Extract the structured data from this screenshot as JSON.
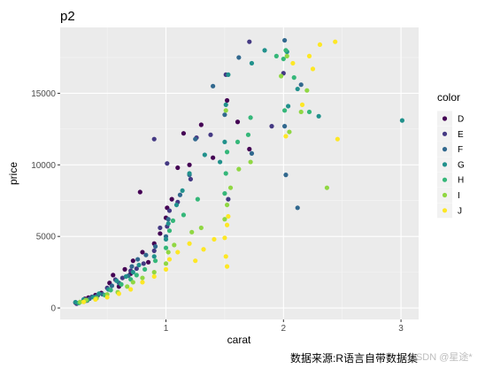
{
  "chart_data": {
    "type": "scatter",
    "title": "p2",
    "xlabel": "carat",
    "ylabel": "price",
    "xlim": [
      0.1,
      3.15
    ],
    "ylim": [
      -800,
      19600
    ],
    "x_ticks": [
      1,
      2,
      3
    ],
    "y_ticks": [
      0,
      5000,
      10000,
      15000
    ],
    "grid": true,
    "legend": {
      "title": "color",
      "placement": "right"
    },
    "series": [
      {
        "name": "D",
        "color": "#440154",
        "points": [
          [
            0.23,
            380
          ],
          [
            0.3,
            560
          ],
          [
            0.31,
            640
          ],
          [
            0.34,
            720
          ],
          [
            0.4,
            900
          ],
          [
            0.45,
            1050
          ],
          [
            0.52,
            1750
          ],
          [
            0.55,
            2300
          ],
          [
            0.6,
            1500
          ],
          [
            0.65,
            2700
          ],
          [
            0.7,
            2400
          ],
          [
            0.72,
            3300
          ],
          [
            0.8,
            3900
          ],
          [
            0.85,
            3200
          ],
          [
            0.9,
            4500
          ],
          [
            0.95,
            5200
          ],
          [
            1.0,
            6300
          ],
          [
            1.01,
            7000
          ],
          [
            1.05,
            7600
          ],
          [
            1.1,
            9800
          ],
          [
            1.15,
            12200
          ],
          [
            1.2,
            10000
          ],
          [
            1.3,
            12800
          ],
          [
            1.4,
            10500
          ],
          [
            1.52,
            14500
          ],
          [
            0.78,
            8100
          ],
          [
            1.71,
            11100
          ],
          [
            1.61,
            13000
          ]
        ]
      },
      {
        "name": "E",
        "color": "#443983",
        "points": [
          [
            0.24,
            300
          ],
          [
            0.3,
            450
          ],
          [
            0.33,
            520
          ],
          [
            0.37,
            780
          ],
          [
            0.42,
            880
          ],
          [
            0.5,
            1400
          ],
          [
            0.57,
            1980
          ],
          [
            0.63,
            2100
          ],
          [
            0.7,
            2600
          ],
          [
            0.75,
            2750
          ],
          [
            0.81,
            3100
          ],
          [
            0.9,
            4000
          ],
          [
            0.95,
            5600
          ],
          [
            1.01,
            5700
          ],
          [
            1.03,
            6800
          ],
          [
            1.1,
            7400
          ],
          [
            1.21,
            9000
          ],
          [
            1.26,
            11900
          ],
          [
            1.38,
            12100
          ],
          [
            1.51,
            16300
          ],
          [
            1.71,
            18600
          ],
          [
            2.0,
            16400
          ],
          [
            1.9,
            12700
          ],
          [
            0.9,
            11800
          ],
          [
            1.53,
            7600
          ],
          [
            1.01,
            10100
          ]
        ]
      },
      {
        "name": "F",
        "color": "#31688e",
        "points": [
          [
            0.25,
            340
          ],
          [
            0.31,
            490
          ],
          [
            0.35,
            650
          ],
          [
            0.41,
            820
          ],
          [
            0.46,
            960
          ],
          [
            0.54,
            1550
          ],
          [
            0.6,
            1750
          ],
          [
            0.68,
            2250
          ],
          [
            0.71,
            2900
          ],
          [
            0.76,
            3400
          ],
          [
            0.83,
            3700
          ],
          [
            0.91,
            4300
          ],
          [
            1.0,
            5000
          ],
          [
            1.02,
            6200
          ],
          [
            1.12,
            7900
          ],
          [
            1.2,
            9300
          ],
          [
            1.25,
            11800
          ],
          [
            1.5,
            13500
          ],
          [
            1.62,
            17500
          ],
          [
            2.01,
            18700
          ],
          [
            2.15,
            15600
          ],
          [
            2.01,
            12700
          ],
          [
            2.02,
            9300
          ],
          [
            2.12,
            7000
          ],
          [
            1.73,
            10800
          ],
          [
            1.4,
            15500
          ]
        ]
      },
      {
        "name": "G",
        "color": "#21918c",
        "points": [
          [
            0.23,
            410
          ],
          [
            0.3,
            600
          ],
          [
            0.38,
            760
          ],
          [
            0.43,
            1000
          ],
          [
            0.51,
            1300
          ],
          [
            0.58,
            1900
          ],
          [
            0.66,
            2200
          ],
          [
            0.72,
            2500
          ],
          [
            0.77,
            3000
          ],
          [
            0.9,
            3600
          ],
          [
            1.0,
            4800
          ],
          [
            1.02,
            5900
          ],
          [
            1.09,
            7200
          ],
          [
            1.14,
            8200
          ],
          [
            1.2,
            9400
          ],
          [
            1.33,
            10700
          ],
          [
            1.5,
            11600
          ],
          [
            1.51,
            14200
          ],
          [
            1.53,
            16300
          ],
          [
            1.73,
            17100
          ],
          [
            1.84,
            18000
          ],
          [
            2.03,
            17900
          ],
          [
            2.12,
            15300
          ],
          [
            2.3,
            13400
          ],
          [
            3.01,
            13100
          ],
          [
            1.46,
            10200
          ],
          [
            2.04,
            14100
          ]
        ]
      },
      {
        "name": "H",
        "color": "#35b779",
        "points": [
          [
            0.26,
            360
          ],
          [
            0.33,
            540
          ],
          [
            0.4,
            700
          ],
          [
            0.48,
            900
          ],
          [
            0.53,
            1250
          ],
          [
            0.62,
            1650
          ],
          [
            0.7,
            2000
          ],
          [
            0.75,
            2300
          ],
          [
            0.82,
            2700
          ],
          [
            0.91,
            3300
          ],
          [
            1.0,
            4200
          ],
          [
            1.03,
            5400
          ],
          [
            1.06,
            6100
          ],
          [
            1.15,
            6500
          ],
          [
            1.27,
            7600
          ],
          [
            1.5,
            8000
          ],
          [
            1.51,
            9400
          ],
          [
            1.52,
            10900
          ],
          [
            1.61,
            11600
          ],
          [
            1.7,
            12100
          ],
          [
            2.01,
            13800
          ],
          [
            2.09,
            16100
          ],
          [
            2.0,
            17400
          ],
          [
            1.94,
            17600
          ],
          [
            2.02,
            18000
          ],
          [
            2.22,
            13700
          ],
          [
            1.72,
            13300
          ]
        ]
      },
      {
        "name": "I",
        "color": "#90d743",
        "points": [
          [
            0.27,
            420
          ],
          [
            0.32,
            560
          ],
          [
            0.41,
            680
          ],
          [
            0.5,
            950
          ],
          [
            0.59,
            1100
          ],
          [
            0.67,
            1500
          ],
          [
            0.72,
            1800
          ],
          [
            0.8,
            2100
          ],
          [
            0.9,
            2500
          ],
          [
            1.0,
            3100
          ],
          [
            1.02,
            3900
          ],
          [
            1.07,
            4400
          ],
          [
            1.22,
            5300
          ],
          [
            1.3,
            5600
          ],
          [
            1.5,
            6200
          ],
          [
            1.52,
            7200
          ],
          [
            1.55,
            8400
          ],
          [
            1.62,
            9700
          ],
          [
            1.72,
            10200
          ],
          [
            1.51,
            13800
          ],
          [
            2.05,
            12300
          ],
          [
            2.15,
            13700
          ],
          [
            2.2,
            15200
          ],
          [
            2.37,
            8400
          ],
          [
            2.03,
            17600
          ],
          [
            1.98,
            16200
          ]
        ]
      },
      {
        "name": "J",
        "color": "#fde725",
        "points": [
          [
            0.3,
            430
          ],
          [
            0.4,
            600
          ],
          [
            0.5,
            750
          ],
          [
            0.6,
            1000
          ],
          [
            0.7,
            1300
          ],
          [
            0.8,
            1800
          ],
          [
            0.9,
            2200
          ],
          [
            1.0,
            2700
          ],
          [
            1.03,
            3400
          ],
          [
            1.1,
            3900
          ],
          [
            1.2,
            4500
          ],
          [
            1.25,
            3300
          ],
          [
            1.32,
            4100
          ],
          [
            1.41,
            4800
          ],
          [
            1.5,
            4900
          ],
          [
            1.52,
            5800
          ],
          [
            1.53,
            6400
          ],
          [
            1.51,
            3600
          ],
          [
            1.52,
            2900
          ],
          [
            2.02,
            12000
          ],
          [
            2.16,
            14200
          ],
          [
            2.22,
            17600
          ],
          [
            2.31,
            18400
          ],
          [
            2.44,
            18600
          ],
          [
            2.46,
            11800
          ],
          [
            2.25,
            16700
          ],
          [
            2.08,
            17100
          ]
        ]
      }
    ],
    "caption": "数据来源:R语言自带数据集",
    "watermark": "CSDN @星途*"
  }
}
